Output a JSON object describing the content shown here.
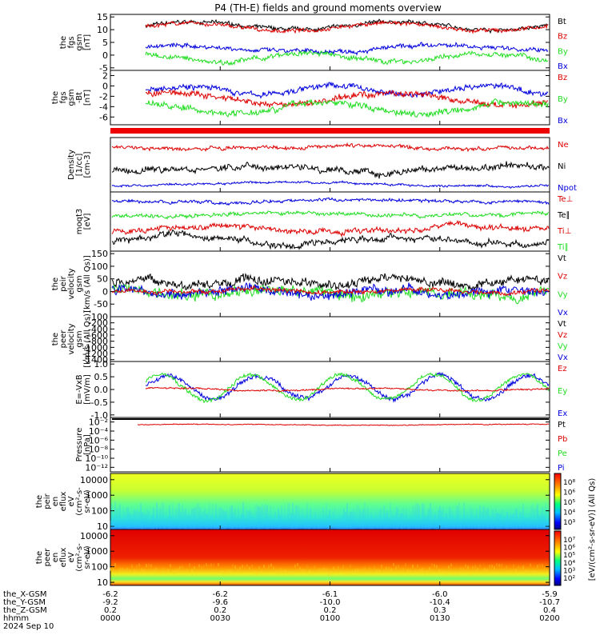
{
  "title": "P4 (TH-E) fields and ground moments overview",
  "colors": {
    "black": "#000000",
    "red": "#dd0000",
    "green": "#22dd22",
    "blue": "#0000dd"
  },
  "panels": [
    {
      "id": "fgs",
      "ylabel": [
        "the",
        "fgs",
        "gsm",
        "[nT]"
      ],
      "ticks": [
        "15",
        "10",
        "5",
        "0",
        "-5"
      ],
      "tickVals": [
        15,
        10,
        5,
        0,
        -5
      ],
      "ylim": [
        -6,
        16
      ],
      "legend": [
        {
          "t": "Bt",
          "c": "black"
        },
        {
          "t": "Bz",
          "c": "red"
        },
        {
          "t": "By",
          "c": "green"
        },
        {
          "t": "Bx",
          "c": "blue"
        }
      ]
    },
    {
      "id": "fgs2",
      "ylabel": [
        "the",
        "fgs",
        "gsm",
        "-Bt",
        "[nT]"
      ],
      "ticks": [
        "2",
        "0",
        "-2",
        "-4",
        "-6"
      ],
      "tickVals": [
        2,
        0,
        -2,
        -4,
        -6
      ],
      "ylim": [
        -7.5,
        3
      ],
      "legend": [
        {
          "t": "Bz",
          "c": "red"
        },
        {
          "t": "By",
          "c": "green"
        },
        {
          "t": "Bx",
          "c": "blue"
        }
      ]
    },
    {
      "id": "density",
      "ylabel": [
        "Density",
        "[1/cc]",
        "[cm-3]"
      ],
      "ticks": [],
      "tickVals": [],
      "ylim": [
        0,
        1
      ],
      "legend": [
        {
          "t": "Ne",
          "c": "red"
        },
        {
          "t": "Ni",
          "c": "black"
        },
        {
          "t": "Npot",
          "c": "blue"
        }
      ]
    },
    {
      "id": "temp",
      "ylabel": [
        "moqt3",
        "[eV]"
      ],
      "ticks": [],
      "tickVals": [],
      "ylim": [
        0,
        1
      ],
      "legend": [
        {
          "t": "Te⊥",
          "c": "red"
        },
        {
          "t": "Te∥",
          "c": "black"
        },
        {
          "t": "Ti⊥",
          "c": "red"
        },
        {
          "t": "Ti∥",
          "c": "green"
        }
      ]
    },
    {
      "id": "peir",
      "ylabel": [
        "the",
        "peir",
        "velocity",
        "gsm",
        "[km/s (All Qs)]"
      ],
      "ticks": [
        "150",
        "100",
        "50",
        "0",
        "-50",
        "-100"
      ],
      "tickVals": [
        150,
        100,
        50,
        0,
        -50,
        -100
      ],
      "ylim": [
        -100,
        160
      ],
      "legend": [
        {
          "t": "Vt",
          "c": "black"
        },
        {
          "t": "Vz",
          "c": "red"
        },
        {
          "t": "Vy",
          "c": "green"
        },
        {
          "t": "Vx",
          "c": "blue"
        }
      ]
    },
    {
      "id": "peer",
      "ylabel": [
        "the",
        "peer",
        "velocity",
        "gsm",
        "[km/s (All Qs)]"
      ],
      "ticks": [
        "-200",
        "-400",
        "-600",
        "-800",
        "-1000",
        "-1200",
        "-1400"
      ],
      "tickVals": [
        -200,
        -400,
        -600,
        -800,
        -1000,
        -1200,
        -1400
      ],
      "ylim": [
        -1460,
        0
      ],
      "legend": [
        {
          "t": "Vt",
          "c": "black"
        },
        {
          "t": "Vz",
          "c": "red"
        },
        {
          "t": "Vy",
          "c": "green"
        },
        {
          "t": "Vx",
          "c": "blue"
        }
      ]
    },
    {
      "id": "efield",
      "ylabel": [
        "E=-VxB",
        "[mV/m]"
      ],
      "ticks": [
        "1.0",
        "0.5",
        "0.0",
        "-0.5",
        "-1.0"
      ],
      "tickVals": [
        1.0,
        0.5,
        0.0,
        -0.5,
        -1.0
      ],
      "ylim": [
        -1.1,
        1.1
      ],
      "legend": [
        {
          "t": "Ez",
          "c": "red"
        },
        {
          "t": "Ey",
          "c": "green"
        },
        {
          "t": "Ex",
          "c": "blue"
        }
      ]
    },
    {
      "id": "pressure",
      "ylabel": [
        "Pressure",
        "[nPa]"
      ],
      "ticks": [
        "10⁻²",
        "10⁻⁴",
        "10⁻⁶",
        "10⁻⁸",
        "10⁻¹⁰",
        "10⁻¹²"
      ],
      "tickVals": [
        -2,
        -4,
        -6,
        -8,
        -10,
        -12
      ],
      "ylim": [
        -13,
        -1
      ],
      "legend": [
        {
          "t": "Pt",
          "c": "black"
        },
        {
          "t": "Pb",
          "c": "red"
        },
        {
          "t": "Pe",
          "c": "green"
        },
        {
          "t": "Pi",
          "c": "blue"
        }
      ]
    },
    {
      "id": "peir_spec",
      "ylabel": [
        "the",
        "peir",
        "en",
        "eflux",
        "eV",
        "(cm²-s-",
        "sr-eV)"
      ],
      "ticks": [
        "10000",
        "1000",
        "100",
        "10"
      ],
      "tickVals": [
        4,
        3,
        2,
        1
      ],
      "ylim": [
        0.8,
        4.4
      ],
      "legend": []
    },
    {
      "id": "peer_spec",
      "ylabel": [
        "the",
        "peer",
        "en",
        "eflux",
        "eV",
        "(cm²-s-",
        "sr-eV)"
      ],
      "ticks": [
        "10000",
        "1000",
        "100",
        "10"
      ],
      "tickVals": [
        4,
        3,
        2,
        1
      ],
      "ylim": [
        0.8,
        4.4
      ],
      "legend": []
    }
  ],
  "colorbar1": {
    "ticks": [
      "10⁸",
      "10⁶",
      "10⁵",
      "10⁴",
      "10³"
    ]
  },
  "colorbar2": {
    "ticks": [
      "10⁷",
      "10⁶",
      "10⁵",
      "10⁴",
      "10³",
      "10²"
    ]
  },
  "colorbar_label": "[eV/(cm²-s-sr-eV)] (All Qs)",
  "xaxis": {
    "rows": [
      {
        "label": "the_X-GSM",
        "vals": [
          "-6.2",
          "-6.2",
          "-6.1",
          "-6.0",
          "-5.9"
        ]
      },
      {
        "label": "the_Y-GSM",
        "vals": [
          "-9.2",
          "-9.6",
          "-10.0",
          "-10.4",
          "-10.7"
        ]
      },
      {
        "label": "the_Z-GSM",
        "vals": [
          "0.2",
          "0.2",
          "0.2",
          "0.3",
          "0.4"
        ]
      },
      {
        "label": "hhmm",
        "vals": [
          "0000",
          "0030",
          "0100",
          "0130",
          "0200"
        ]
      }
    ],
    "date": "2024 Sep 10"
  },
  "chart_data": {
    "type": "line",
    "title": "P4 (TH-E) fields and ground moments overview",
    "x_ticks_hhmm": [
      "0000",
      "0030",
      "0100",
      "0130",
      "0200"
    ],
    "x_range_hhmm": [
      "0000",
      "0200"
    ],
    "panels": [
      {
        "name": "the fgs gsm",
        "unit": "nT",
        "ylim": [
          -6,
          16
        ],
        "series": [
          "Bt",
          "Bz",
          "By",
          "Bx"
        ]
      },
      {
        "name": "the fgs gsm -Bt",
        "unit": "nT",
        "ylim": [
          -7.5,
          3
        ],
        "series": [
          "Bz",
          "By",
          "Bx"
        ]
      },
      {
        "name": "Density",
        "unit": "1/cc",
        "series": [
          "Ne",
          "Ni",
          "Npot"
        ]
      },
      {
        "name": "moqt3",
        "unit": "eV",
        "series": [
          "Te⊥",
          "Te∥",
          "Ti⊥",
          "Ti∥"
        ]
      },
      {
        "name": "the peir velocity gsm",
        "unit": "km/s",
        "ylim": [
          -100,
          160
        ],
        "series": [
          "Vt",
          "Vz",
          "Vy",
          "Vx"
        ]
      },
      {
        "name": "the peer velocity gsm",
        "unit": "km/s",
        "ylim": [
          -1460,
          0
        ],
        "series": [
          "Vt",
          "Vz",
          "Vy",
          "Vx"
        ]
      },
      {
        "name": "E=-VxB",
        "unit": "mV/m",
        "ylim": [
          -1.1,
          1.1
        ],
        "series": [
          "Ez",
          "Ey",
          "Ex"
        ]
      },
      {
        "name": "Pressure",
        "unit": "nPa",
        "scale": "log",
        "series": [
          "Pt",
          "Pb",
          "Pe",
          "Pi"
        ]
      },
      {
        "name": "the peir en eflux",
        "type": "heatmap",
        "y_scale": "log",
        "yrange_eV": [
          10,
          10000
        ]
      },
      {
        "name": "the peer en eflux",
        "type": "heatmap",
        "y_scale": "log",
        "yrange_eV": [
          10,
          10000
        ]
      }
    ]
  }
}
